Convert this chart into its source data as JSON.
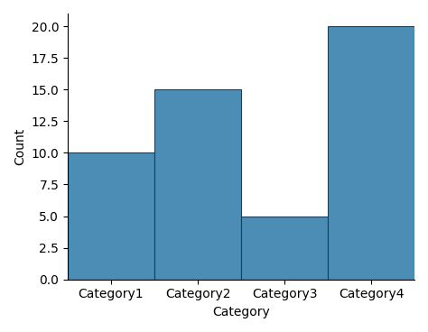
{
  "categories": [
    "Category1",
    "Category2",
    "Category3",
    "Category4"
  ],
  "values": [
    10,
    15,
    5,
    20
  ],
  "bar_color": "#4c8db5",
  "bar_edgecolor": "#1a3f5c",
  "xlabel": "Category",
  "ylabel": "Count",
  "ylim": [
    0,
    21
  ],
  "yticks": [
    0.0,
    2.5,
    5.0,
    7.5,
    10.0,
    12.5,
    15.0,
    17.5,
    20.0
  ],
  "figsize": [
    4.74,
    3.68
  ],
  "dpi": 100
}
